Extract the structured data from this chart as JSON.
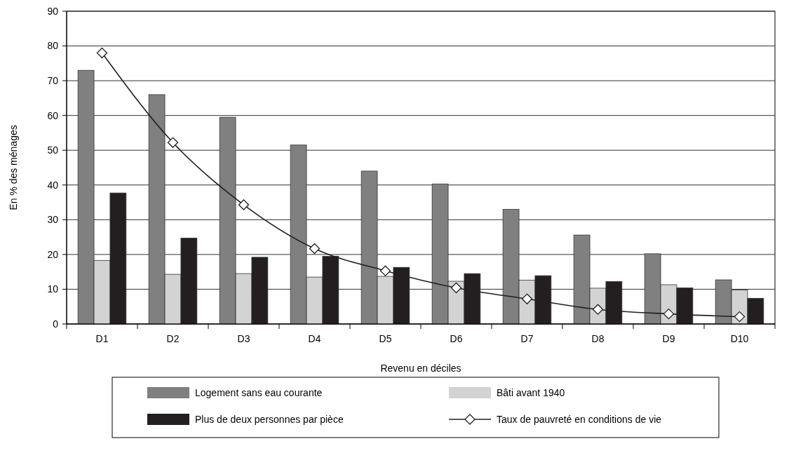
{
  "chart_data": {
    "type": "bar",
    "xlabel": "Revenu en déciles",
    "ylabel": "En % des ménages",
    "categories": [
      "D1",
      "D2",
      "D3",
      "D4",
      "D5",
      "D6",
      "D7",
      "D8",
      "D9",
      "D10"
    ],
    "series": [
      {
        "name": "Logement sans eau courante",
        "color": "#808080",
        "values": [
          73,
          66,
          59.5,
          51.5,
          44,
          40.3,
          33,
          25.6,
          20.2,
          12.7
        ]
      },
      {
        "name": "Bâti avant 1940",
        "color": "#d3d3d3",
        "values": [
          18.3,
          14.3,
          14.5,
          13.5,
          13.7,
          12.3,
          12.6,
          10.3,
          11.3,
          9.8
        ]
      },
      {
        "name": "Plus de deux personnes par pièce",
        "color": "#231f20",
        "values": [
          37.7,
          24.7,
          19.2,
          19.5,
          16.3,
          14.5,
          13.9,
          12.2,
          10.4,
          7.4
        ]
      },
      {
        "name": "Taux de pauvreté en conditions de vie",
        "type": "line",
        "color": "#231f20",
        "marker": "diamond",
        "values": [
          78,
          52.2,
          34.3,
          21.7,
          15.3,
          10.4,
          7.2,
          4.2,
          2.9,
          2.1
        ]
      }
    ],
    "ylim": [
      0,
      90
    ],
    "yticks": [
      0,
      10,
      20,
      30,
      40,
      50,
      60,
      70,
      80,
      90
    ],
    "grid": "y",
    "legend": "bottom"
  }
}
